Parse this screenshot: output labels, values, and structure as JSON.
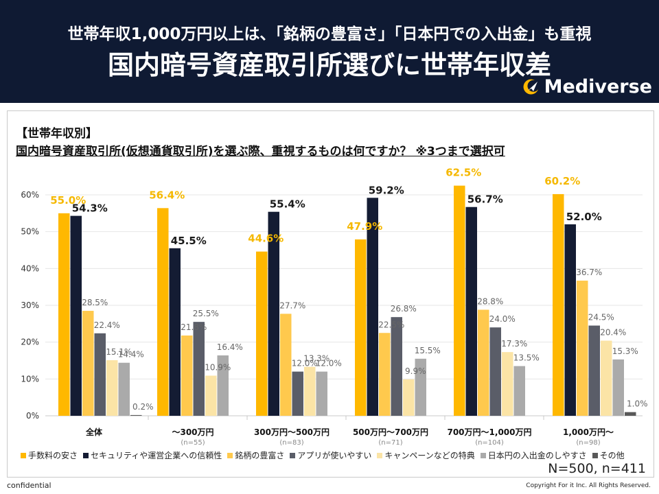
{
  "header": {
    "title_line1": "世帯年収1,000万円以上は、「銘柄の豊富さ」「日本円での入出金」も重視",
    "title_line2": "国内暗号資産取引所選びに世帯年収差",
    "logo_text": "Mediverse"
  },
  "section_label": "【世帯年収別】",
  "question": "国内暗号資産取引所(仮想通貨取引所)を選ぶ際、重視するものは何ですか？ ※3つまで選択可",
  "sample_size": "N=500, n=411",
  "footer": {
    "confidential": "confidential",
    "copyright": "Copyright For it Inc. All Rights Reserved."
  },
  "colors": {
    "header_bg": "#0f1a33",
    "highlight_label": "#f5b800",
    "series": [
      "#ffb800",
      "#141c33",
      "#ffc94d",
      "#5a5d68",
      "#fbe4a6",
      "#aaaaaa",
      "#595959"
    ]
  },
  "chart_data": {
    "type": "bar",
    "categories": [
      "全体",
      "〜300万円",
      "300万円〜500万円",
      "500万円〜700万円",
      "700万円〜1,000万円",
      "1,000万円〜"
    ],
    "category_notes": [
      "",
      "(n=55)",
      "(n=83)",
      "(n=71)",
      "(n=104)",
      "(n=98)"
    ],
    "series": [
      {
        "name": "手数料の安さ",
        "values": [
          55.0,
          56.4,
          44.6,
          47.9,
          62.5,
          60.2
        ]
      },
      {
        "name": "セキュリティや運営企業への信頼性",
        "values": [
          54.3,
          45.5,
          55.4,
          59.2,
          56.7,
          52.0
        ]
      },
      {
        "name": "銘柄の豊富さ",
        "values": [
          28.5,
          21.8,
          27.7,
          22.5,
          28.8,
          36.7
        ]
      },
      {
        "name": "アプリが使いやすい",
        "values": [
          22.4,
          25.5,
          12.0,
          26.8,
          24.0,
          24.5
        ]
      },
      {
        "name": "キャンペーンなどの特典",
        "values": [
          15.1,
          10.9,
          13.3,
          9.9,
          17.3,
          20.4
        ]
      },
      {
        "name": "日本円の入出金のしやすさ",
        "values": [
          14.4,
          16.4,
          12.0,
          15.5,
          13.5,
          15.3
        ]
      },
      {
        "name": "その他",
        "values": [
          0.2,
          null,
          null,
          null,
          null,
          1.0
        ]
      }
    ],
    "y_unit": "%",
    "ylim": [
      0,
      60
    ],
    "yticks": [
      "0%",
      "10%",
      "20%",
      "30%",
      "40%",
      "50%",
      "60%"
    ],
    "legend_position": "bottom"
  }
}
